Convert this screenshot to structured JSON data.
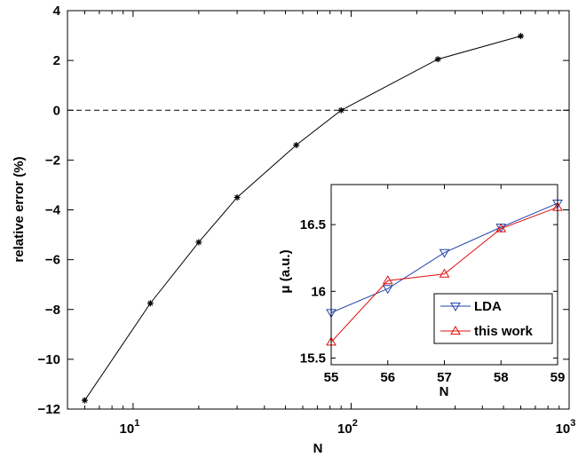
{
  "chart_data": [
    {
      "type": "line",
      "xlabel": "N",
      "ylabel": "relative error (%)",
      "xscale": "log",
      "xlim": [
        5,
        1000
      ],
      "ylim": [
        -12,
        4
      ],
      "x_ticks": [
        10,
        100,
        1000
      ],
      "x_tick_labels": [
        {
          "base": "10",
          "exp": "1"
        },
        {
          "base": "10",
          "exp": "2"
        },
        {
          "base": "10",
          "exp": "3"
        }
      ],
      "y_ticks": [
        -12,
        -10,
        -8,
        -6,
        -4,
        -2,
        0,
        2,
        4
      ],
      "y_tick_labels": [
        "−12",
        "−10",
        "−8",
        "−6",
        "−4",
        "−2",
        "0",
        "2",
        "4"
      ],
      "reference_line": {
        "y": 0,
        "style": "dashed"
      },
      "series": [
        {
          "color": "#000000",
          "marker": "asterisk",
          "x": [
            6,
            12,
            20,
            30,
            56,
            90,
            250,
            600
          ],
          "y": [
            -11.65,
            -7.75,
            -5.3,
            -3.5,
            -1.4,
            0.0,
            2.05,
            2.98
          ]
        }
      ],
      "grid": false
    },
    {
      "type": "line",
      "inset": true,
      "xlabel": "N",
      "ylabel": "μ (a.u.)",
      "xlim": [
        55,
        59
      ],
      "ylim": [
        15.45,
        16.8
      ],
      "x_ticks": [
        55,
        56,
        57,
        58,
        59
      ],
      "x_tick_labels": [
        "55",
        "56",
        "57",
        "58",
        "59"
      ],
      "y_ticks": [
        15.5,
        16,
        16.5
      ],
      "y_tick_labels": [
        "15.5",
        "16",
        "16.5"
      ],
      "legend_position": "bottom-right",
      "series": [
        {
          "name": "LDA",
          "color": "#2244aa",
          "marker": "triangle-down",
          "x": [
            55,
            56,
            57,
            58,
            59
          ],
          "y": [
            15.84,
            16.02,
            16.29,
            16.48,
            16.66
          ]
        },
        {
          "name": "this work",
          "color": "#e01010",
          "marker": "triangle-up",
          "x": [
            55,
            56,
            57,
            58,
            59
          ],
          "y": [
            15.62,
            16.08,
            16.13,
            16.47,
            16.63
          ]
        }
      ],
      "grid": false
    }
  ]
}
